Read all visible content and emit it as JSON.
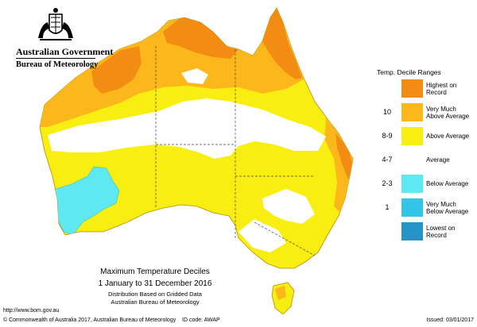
{
  "header": {
    "government": "Australian Government",
    "bureau": "Bureau of Meteorology"
  },
  "map": {
    "region": "Australia"
  },
  "legend": {
    "title": "Temp. Decile Ranges",
    "items": [
      {
        "range": "",
        "label": "Highest on Record",
        "color": "#f28c12"
      },
      {
        "range": "10",
        "label": "Very Much Above Average",
        "color": "#fcb81b"
      },
      {
        "range": "8-9",
        "label": "Above Average",
        "color": "#f8ee11"
      },
      {
        "range": "4-7",
        "label": "Average",
        "color": "#ffffff"
      },
      {
        "range": "2-3",
        "label": "Below Average",
        "color": "#5ee8f2"
      },
      {
        "range": "1",
        "label": "Very Much Below Average",
        "color": "#33c4ea"
      },
      {
        "range": "",
        "label": "Lowest on Record",
        "color": "#2493c5"
      }
    ]
  },
  "caption": {
    "title": "Maximum Temperature Deciles",
    "dates": "1 January to 31 December 2016",
    "line1": "Distribution Based on Gridded Data",
    "line2": "Australian Bureau of Meteorology"
  },
  "footer": {
    "url": "http://www.bom.gov.au",
    "copyright": "© Commonwealth of Australia 2017, Australian Bureau of Meteorology",
    "id_code": "ID code: AWAP",
    "issued": "Issued: 03/01/2017"
  }
}
